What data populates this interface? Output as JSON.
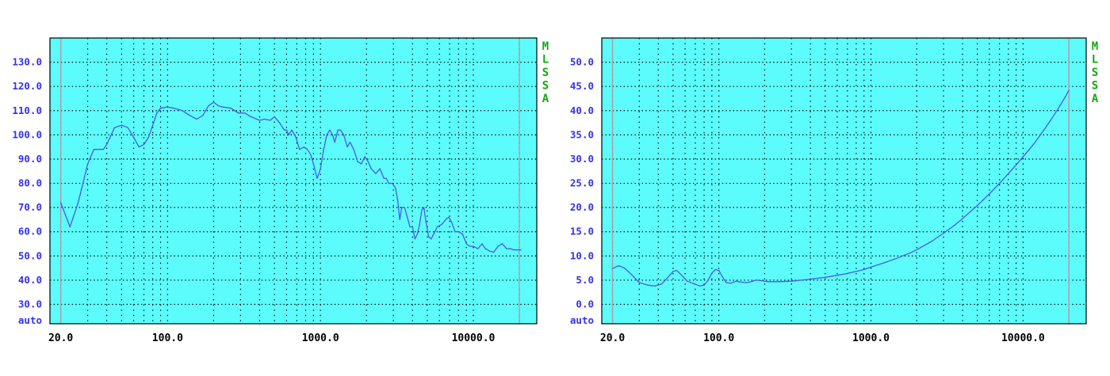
{
  "colors": {
    "plot_background": "#5cfcfc",
    "frame": "#000000",
    "grid": "#000000",
    "curve": "#4a5ae8",
    "y_tick_label": "#3333ee",
    "x_tick_label": "#000000",
    "side_label": "#11aa11",
    "marker_line": "#b59ea6"
  },
  "chart_data": [
    {
      "type": "line",
      "x_scale": "log",
      "xlim": [
        17,
        26000
      ],
      "ylim": [
        22,
        140
      ],
      "x_ticks": [
        {
          "value": 20,
          "label": "20.0"
        },
        {
          "value": 100,
          "label": "100.0"
        },
        {
          "value": 1000,
          "label": "1000.0"
        },
        {
          "value": 10000,
          "label": "10000.0"
        }
      ],
      "y_ticks": [
        {
          "value": 30,
          "label": "30.0"
        },
        {
          "value": 40,
          "label": "40.0"
        },
        {
          "value": 50,
          "label": "50.0"
        },
        {
          "value": 60,
          "label": "60.0"
        },
        {
          "value": 70,
          "label": "70.0"
        },
        {
          "value": 80,
          "label": "80.0"
        },
        {
          "value": 90,
          "label": "90.0"
        },
        {
          "value": 100,
          "label": "100.0"
        },
        {
          "value": 110,
          "label": "110.0"
        },
        {
          "value": 120,
          "label": "120.0"
        },
        {
          "value": 130,
          "label": "130.0"
        }
      ],
      "y_auto_label": "auto",
      "side_label": [
        "M",
        "L",
        "S",
        "S",
        "A"
      ],
      "markers": [
        20,
        20000
      ],
      "grid": true,
      "series": [
        {
          "points": [
            [
              20,
              72
            ],
            [
              23,
              62
            ],
            [
              26,
              72
            ],
            [
              30,
              88
            ],
            [
              33,
              94
            ],
            [
              38,
              94
            ],
            [
              40,
              96
            ],
            [
              45,
              103
            ],
            [
              50,
              104
            ],
            [
              55,
              103
            ],
            [
              60,
              99
            ],
            [
              65,
              95
            ],
            [
              70,
              96
            ],
            [
              75,
              99
            ],
            [
              80,
              104
            ],
            [
              85,
              109
            ],
            [
              90,
              111
            ],
            [
              100,
              111.5
            ],
            [
              110,
              111
            ],
            [
              125,
              110
            ],
            [
              140,
              108
            ],
            [
              155,
              106.5
            ],
            [
              170,
              108
            ],
            [
              185,
              112
            ],
            [
              200,
              113.5
            ],
            [
              215,
              112
            ],
            [
              230,
              111.5
            ],
            [
              260,
              111
            ],
            [
              290,
              109
            ],
            [
              320,
              109
            ],
            [
              350,
              107.5
            ],
            [
              400,
              106
            ],
            [
              430,
              106.5
            ],
            [
              470,
              106
            ],
            [
              500,
              107.5
            ],
            [
              540,
              105
            ],
            [
              580,
              102
            ],
            [
              600,
              102
            ],
            [
              620,
              100
            ],
            [
              650,
              102
            ],
            [
              690,
              99
            ],
            [
              730,
              94
            ],
            [
              780,
              95
            ],
            [
              820,
              94
            ],
            [
              860,
              92
            ],
            [
              900,
              88
            ],
            [
              950,
              82
            ],
            [
              1000,
              86
            ],
            [
              1050,
              94
            ],
            [
              1100,
              100
            ],
            [
              1150,
              102
            ],
            [
              1200,
              100
            ],
            [
              1240,
              97
            ],
            [
              1300,
              102
            ],
            [
              1350,
              102
            ],
            [
              1420,
              100
            ],
            [
              1500,
              95
            ],
            [
              1560,
              97
            ],
            [
              1650,
              94
            ],
            [
              1750,
              89
            ],
            [
              1850,
              88
            ],
            [
              1950,
              91
            ],
            [
              2050,
              89
            ],
            [
              2150,
              86
            ],
            [
              2300,
              84
            ],
            [
              2450,
              86
            ],
            [
              2600,
              82
            ],
            [
              2700,
              82
            ],
            [
              2800,
              80
            ],
            [
              2950,
              80
            ],
            [
              3100,
              78
            ],
            [
              3200,
              73
            ],
            [
              3300,
              65
            ],
            [
              3400,
              70
            ],
            [
              3550,
              70
            ],
            [
              3700,
              66
            ],
            [
              3850,
              62
            ],
            [
              4000,
              62
            ],
            [
              4150,
              57
            ],
            [
              4300,
              59
            ],
            [
              4450,
              63
            ],
            [
              4600,
              69
            ],
            [
              4750,
              70
            ],
            [
              4900,
              64
            ],
            [
              5100,
              58
            ],
            [
              5300,
              57
            ],
            [
              5500,
              59
            ],
            [
              5800,
              62
            ],
            [
              6200,
              63
            ],
            [
              6600,
              65
            ],
            [
              6900,
              66
            ],
            [
              7200,
              64
            ],
            [
              7600,
              60
            ],
            [
              8000,
              60
            ],
            [
              8500,
              59
            ],
            [
              9000,
              55
            ],
            [
              9500,
              54
            ],
            [
              10000,
              54
            ],
            [
              10700,
              53
            ],
            [
              11400,
              55
            ],
            [
              12000,
              53
            ],
            [
              12800,
              52
            ],
            [
              13600,
              51.5
            ],
            [
              14500,
              54
            ],
            [
              15500,
              55
            ],
            [
              16500,
              53
            ],
            [
              17500,
              53
            ],
            [
              18500,
              52.5
            ],
            [
              19500,
              52.5
            ],
            [
              20500,
              52.5
            ]
          ]
        }
      ]
    },
    {
      "type": "line",
      "x_scale": "log",
      "xlim": [
        17,
        26000
      ],
      "ylim": [
        -4,
        55
      ],
      "x_ticks": [
        {
          "value": 20,
          "label": "20.0"
        },
        {
          "value": 100,
          "label": "100.0"
        },
        {
          "value": 1000,
          "label": "1000.0"
        },
        {
          "value": 10000,
          "label": "10000.0"
        }
      ],
      "y_ticks": [
        {
          "value": 0,
          "label": "0.0"
        },
        {
          "value": 5,
          "label": "5.0"
        },
        {
          "value": 10,
          "label": "10.0"
        },
        {
          "value": 15,
          "label": "15.0"
        },
        {
          "value": 20,
          "label": "20.0"
        },
        {
          "value": 25,
          "label": "25.0"
        },
        {
          "value": 30,
          "label": "30.0"
        },
        {
          "value": 35,
          "label": "35.0"
        },
        {
          "value": 40,
          "label": "40.0"
        },
        {
          "value": 45,
          "label": "45.0"
        },
        {
          "value": 50,
          "label": "50.0"
        }
      ],
      "y_auto_label": "auto",
      "side_label": [
        "M",
        "L",
        "S",
        "S",
        "A"
      ],
      "markers": [
        20,
        20000
      ],
      "grid": true,
      "series": [
        {
          "points": [
            [
              20,
              7.4
            ],
            [
              22,
              8
            ],
            [
              24,
              7.5
            ],
            [
              27,
              6
            ],
            [
              30,
              4.5
            ],
            [
              34,
              4
            ],
            [
              38,
              3.8
            ],
            [
              42,
              4.2
            ],
            [
              46,
              5.5
            ],
            [
              50,
              6.8
            ],
            [
              53,
              7
            ],
            [
              57,
              6
            ],
            [
              62,
              4.8
            ],
            [
              68,
              4.3
            ],
            [
              75,
              3.8
            ],
            [
              80,
              4
            ],
            [
              85,
              5
            ],
            [
              90,
              6.5
            ],
            [
              95,
              7.2
            ],
            [
              100,
              7
            ],
            [
              105,
              5.8
            ],
            [
              112,
              4.5
            ],
            [
              120,
              4.4
            ],
            [
              130,
              4.8
            ],
            [
              140,
              4.6
            ],
            [
              150,
              4.5
            ],
            [
              160,
              4.6
            ],
            [
              175,
              5
            ],
            [
              190,
              4.9
            ],
            [
              210,
              4.7
            ],
            [
              250,
              4.7
            ],
            [
              300,
              4.8
            ],
            [
              350,
              5
            ],
            [
              400,
              5.2
            ],
            [
              500,
              5.6
            ],
            [
              600,
              6
            ],
            [
              700,
              6.4
            ],
            [
              800,
              6.8
            ],
            [
              900,
              7.2
            ],
            [
              1000,
              7.7
            ],
            [
              1200,
              8.5
            ],
            [
              1500,
              9.6
            ],
            [
              1800,
              10.6
            ],
            [
              2000,
              11.3
            ],
            [
              2500,
              13
            ],
            [
              3000,
              14.7
            ],
            [
              3500,
              16.2
            ],
            [
              4000,
              17.7
            ],
            [
              5000,
              20.4
            ],
            [
              6000,
              22.8
            ],
            [
              7000,
              25
            ],
            [
              8000,
              27
            ],
            [
              9000,
              28.8
            ],
            [
              10000,
              30.5
            ],
            [
              11000,
              32
            ],
            [
              12000,
              33.5
            ],
            [
              13000,
              35
            ],
            [
              14000,
              36.4
            ],
            [
              15000,
              37.8
            ],
            [
              16000,
              39.1
            ],
            [
              17000,
              40.4
            ],
            [
              18000,
              41.7
            ],
            [
              19000,
              42.9
            ],
            [
              20000,
              44.2
            ]
          ]
        }
      ]
    }
  ]
}
